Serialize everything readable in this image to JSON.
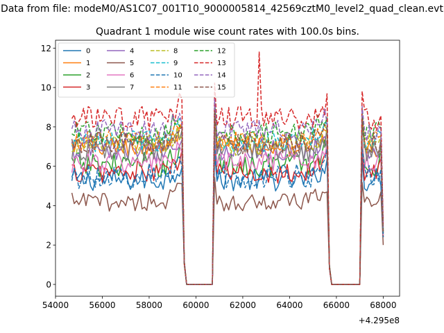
{
  "chart_data": {
    "type": "line",
    "suptitle": "Data from file: modeM0/AS1C07_001T10_9000005814_42569cztM0_level2_quad_clean.evt",
    "title": "Quadrant 1 module wise count rates with 100.0s bins.",
    "xlabel": "",
    "ylabel": "",
    "x_offset_label": "+4.295e8",
    "xlim": [
      54000,
      68700
    ],
    "ylim": [
      -0.6,
      12.4
    ],
    "xticks": [
      54000,
      56000,
      58000,
      60000,
      62000,
      64000,
      66000,
      68000
    ],
    "xtick_labels": [
      "54000",
      "56000",
      "58000",
      "60000",
      "62000",
      "64000",
      "66000",
      "68000"
    ],
    "yticks": [
      0,
      2,
      4,
      6,
      8,
      10,
      12
    ],
    "ytick_labels": [
      "0",
      "2",
      "4",
      "6",
      "8",
      "10",
      "12"
    ],
    "legend": {
      "placement": "top-left",
      "columns": 4
    },
    "segments": [
      {
        "start": 54700,
        "end": 59400
      },
      {
        "start": 60800,
        "end": 65600
      },
      {
        "start": 67100,
        "end": 68000
      }
    ],
    "gap_x": [
      59600,
      59700,
      59800,
      59900,
      60000,
      60100,
      60200,
      60300,
      60400,
      60500,
      60600,
      60700,
      65800,
      65900,
      66000,
      66100,
      66200,
      66300,
      66400,
      66500,
      66600,
      66700,
      66800,
      66900,
      67000
    ],
    "series": [
      {
        "name": "0",
        "color": "#1f77b4",
        "dashed": false,
        "mean": 5.3,
        "amp": 0.35,
        "end_value": 2.4
      },
      {
        "name": "1",
        "color": "#ff7f0e",
        "dashed": false,
        "mean": 7.0,
        "amp": 0.35,
        "end_value": 2.6
      },
      {
        "name": "2",
        "color": "#2ca02c",
        "dashed": false,
        "mean": 6.1,
        "amp": 0.4,
        "end_value": 2.5
      },
      {
        "name": "3",
        "color": "#d62728",
        "dashed": false,
        "mean": 5.7,
        "amp": 0.35,
        "end_value": 2.4
      },
      {
        "name": "4",
        "color": "#9467bd",
        "dashed": false,
        "mean": 6.8,
        "amp": 0.35,
        "end_value": 2.6
      },
      {
        "name": "5",
        "color": "#8c564b",
        "dashed": false,
        "mean": 4.2,
        "amp": 0.3,
        "end_value": 2.0
      },
      {
        "name": "6",
        "color": "#e377c2",
        "dashed": false,
        "mean": 6.2,
        "amp": 0.35,
        "end_value": 2.5
      },
      {
        "name": "7",
        "color": "#7f7f7f",
        "dashed": false,
        "mean": 6.8,
        "amp": 0.35,
        "end_value": 2.6
      },
      {
        "name": "8",
        "color": "#bcbd22",
        "dashed": true,
        "mean": 7.1,
        "amp": 0.35,
        "end_value": 2.6
      },
      {
        "name": "9",
        "color": "#17becf",
        "dashed": true,
        "mean": 7.3,
        "amp": 0.35,
        "end_value": 2.7
      },
      {
        "name": "10",
        "color": "#1f77b4",
        "dashed": true,
        "mean": 5.5,
        "amp": 0.4,
        "end_value": 2.4
      },
      {
        "name": "11",
        "color": "#ff7f0e",
        "dashed": true,
        "mean": 7.3,
        "amp": 0.35,
        "end_value": 2.7
      },
      {
        "name": "12",
        "color": "#2ca02c",
        "dashed": true,
        "mean": 7.7,
        "amp": 0.35,
        "end_value": 2.8
      },
      {
        "name": "13",
        "color": "#d62728",
        "dashed": true,
        "mean": 8.4,
        "amp": 0.4,
        "end_value": 3.0,
        "spike": {
          "x": 62700,
          "y": 11.8
        }
      },
      {
        "name": "14",
        "color": "#9467bd",
        "dashed": true,
        "mean": 7.8,
        "amp": 0.35,
        "end_value": 2.8
      },
      {
        "name": "15",
        "color": "#8c564b",
        "dashed": true,
        "mean": 7.2,
        "amp": 0.35,
        "end_value": 2.7
      }
    ]
  }
}
